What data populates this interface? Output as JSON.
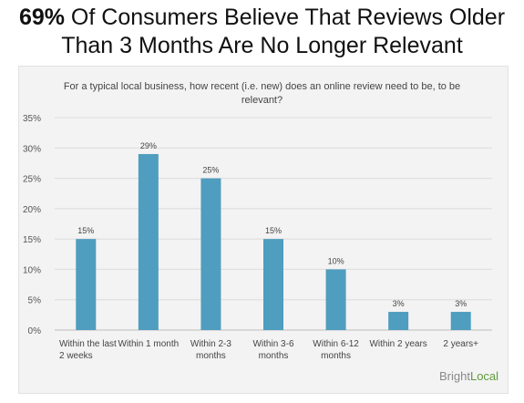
{
  "headline": {
    "bold": "69%",
    "rest": " Of Consumers Believe That Reviews Older Than 3 Months Are No Longer Relevant"
  },
  "chart_data": {
    "type": "bar",
    "title": "For a typical local business, how recent (i.e. new) does an online review need to be, to be relevant?",
    "categories": [
      [
        "Within the last",
        "2 weeks"
      ],
      [
        "Within 1 month"
      ],
      [
        "Within 2-3",
        "months"
      ],
      [
        "Within 3-6",
        "months"
      ],
      [
        "Within 6-12",
        "months"
      ],
      [
        "Within 2 years"
      ],
      [
        "2 years+"
      ]
    ],
    "values": [
      15,
      29,
      25,
      15,
      10,
      3,
      3
    ],
    "value_labels": [
      "15%",
      "29%",
      "25%",
      "15%",
      "10%",
      "3%",
      "3%"
    ],
    "y_ticks": [
      0,
      5,
      10,
      15,
      20,
      25,
      30,
      35
    ],
    "y_tick_labels": [
      "0%",
      "5%",
      "10%",
      "15%",
      "20%",
      "25%",
      "30%",
      "35%"
    ],
    "ylim": [
      0,
      35
    ],
    "bar_color": "#4f9dbf",
    "grid": true
  },
  "brand": {
    "part1": "Bright",
    "part2": "Local"
  }
}
